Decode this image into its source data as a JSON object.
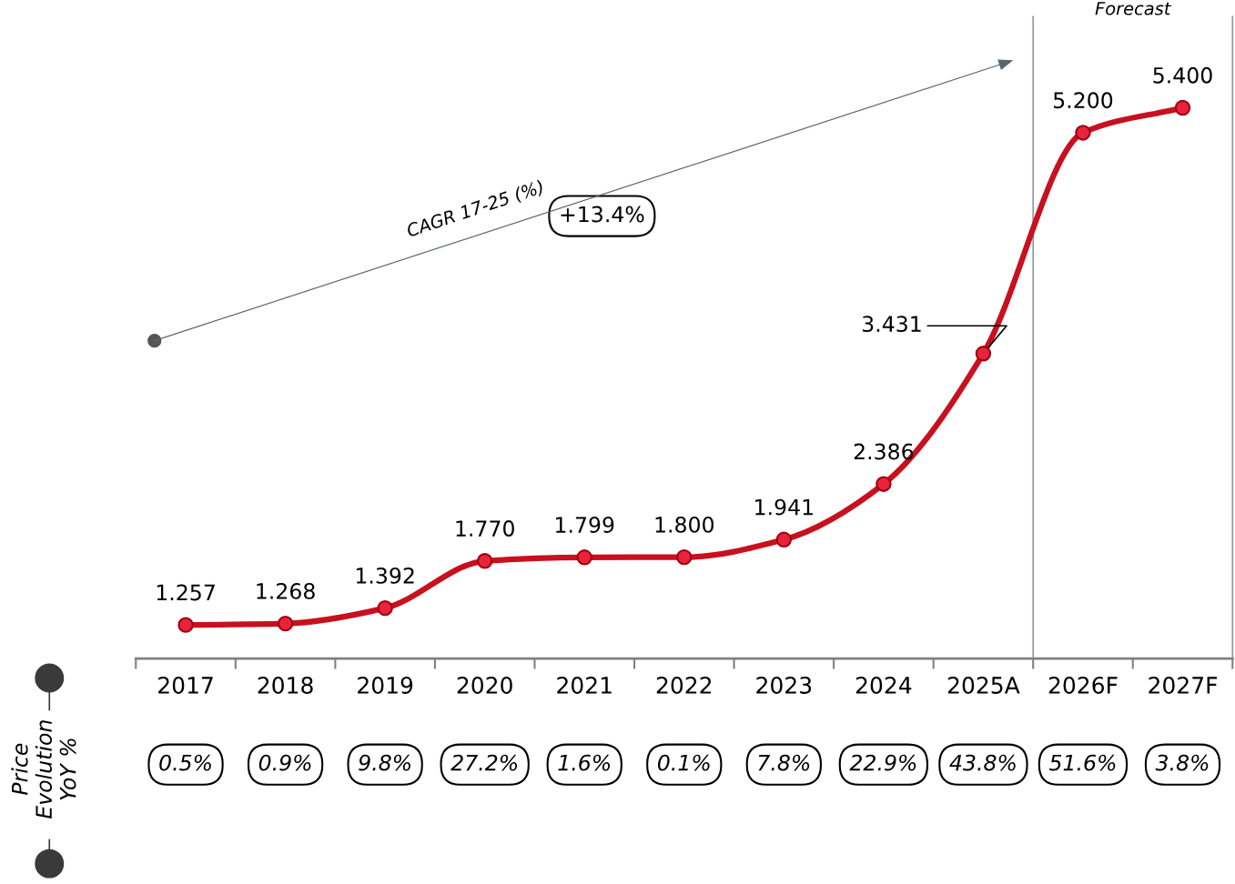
{
  "chart_data": {
    "type": "line",
    "categories": [
      "2017",
      "2018",
      "2019",
      "2020",
      "2021",
      "2022",
      "2023",
      "2024",
      "2025A",
      "2026F",
      "2027F"
    ],
    "series": [
      {
        "color": "#c8101e",
        "values": [
          1.257,
          1.268,
          1.392,
          1.77,
          1.799,
          1.8,
          1.941,
          2.386,
          3.431,
          5.2,
          5.4
        ],
        "value_labels": [
          "1.257",
          "1.268",
          "1.392",
          "1.770",
          "1.799",
          "1.800",
          "1.941",
          "2.386",
          "3.431",
          "5.200",
          "5.400"
        ]
      }
    ],
    "marker": "circle",
    "line_style": "solid",
    "grid": false,
    "legend": false,
    "tick_labels": "x",
    "annotations": [
      "CAGR 17-25 (%)",
      "+13.4%",
      "Price\nEvolution\nYoY %",
      "Forecast",
      "0.5%",
      "0.9%",
      "9.8%",
      "27.2%",
      "1.6%",
      "0.1%",
      "7.8%",
      "22.9%",
      "43.8%",
      "51.6%",
      "3.8%"
    ]
  }
}
